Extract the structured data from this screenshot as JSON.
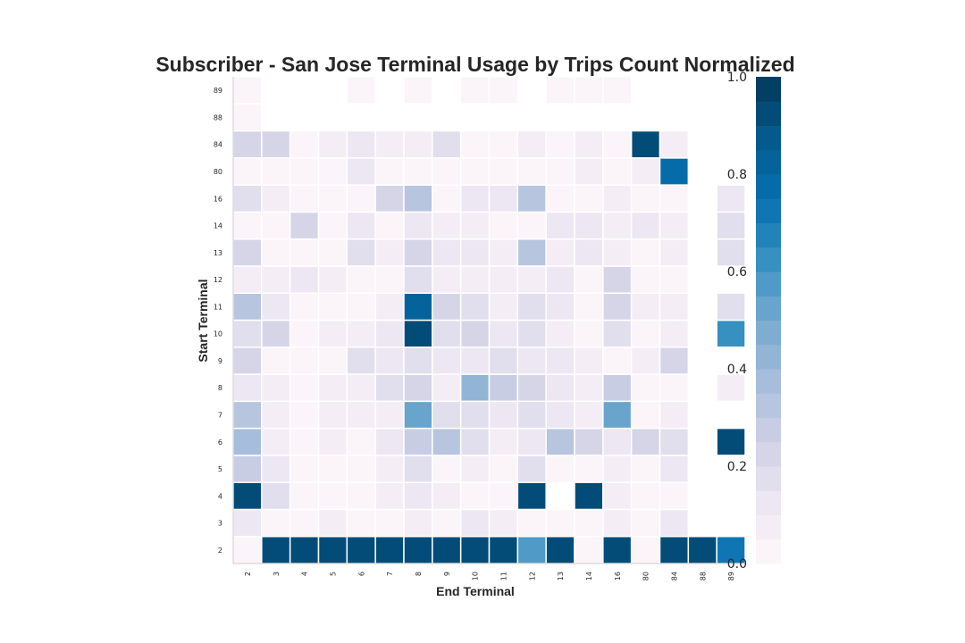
{
  "chart_data": {
    "type": "heatmap",
    "title": "Subscriber - San Jose Terminal Usage by Trips Count Normalized",
    "xlabel": "End Terminal",
    "ylabel": "Start Terminal",
    "x_categories": [
      "2",
      "3",
      "4",
      "5",
      "6",
      "7",
      "8",
      "9",
      "10",
      "11",
      "12",
      "13",
      "14",
      "16",
      "80",
      "84",
      "88",
      "89"
    ],
    "y_categories": [
      "2",
      "3",
      "4",
      "5",
      "6",
      "7",
      "8",
      "9",
      "10",
      "11",
      "12",
      "13",
      "14",
      "16",
      "80",
      "84",
      "88",
      "89"
    ],
    "values": [
      [
        0.02,
        0.93,
        0.93,
        0.93,
        0.93,
        0.93,
        0.93,
        0.93,
        0.93,
        0.93,
        0.55,
        0.93,
        0.02,
        0.93,
        0.0,
        0.93,
        0.93,
        0.7
      ],
      [
        0.1,
        0.03,
        0.03,
        0.06,
        0.03,
        0.03,
        0.06,
        0.03,
        0.1,
        0.06,
        0.03,
        0.02,
        0.02,
        0.06,
        0.03,
        0.1,
        null,
        null
      ],
      [
        0.93,
        0.15,
        0.04,
        0.04,
        0.04,
        0.06,
        0.1,
        0.06,
        0.03,
        0.03,
        0.93,
        null,
        0.93,
        0.06,
        0.03,
        0.03,
        null,
        null
      ],
      [
        0.25,
        0.1,
        0.04,
        0.04,
        0.03,
        0.06,
        0.15,
        0.03,
        0.06,
        0.03,
        0.15,
        0.03,
        0.03,
        0.06,
        0.03,
        0.1,
        null,
        null
      ],
      [
        0.35,
        0.06,
        0.04,
        0.06,
        0.03,
        0.1,
        0.25,
        0.3,
        0.15,
        0.06,
        0.1,
        0.3,
        0.2,
        0.1,
        0.2,
        0.15,
        null,
        0.93
      ],
      [
        0.3,
        0.06,
        0.04,
        0.06,
        0.06,
        0.06,
        0.5,
        0.15,
        0.15,
        0.1,
        0.15,
        0.1,
        0.06,
        0.5,
        0.03,
        0.06,
        null,
        null
      ],
      [
        0.1,
        0.06,
        0.04,
        0.06,
        0.06,
        0.15,
        0.2,
        0.06,
        0.4,
        0.25,
        0.2,
        0.1,
        0.06,
        0.25,
        0.03,
        0.03,
        null,
        0.06
      ],
      [
        0.2,
        0.03,
        0.04,
        0.03,
        0.15,
        0.1,
        0.15,
        0.1,
        0.1,
        0.15,
        0.1,
        0.1,
        0.06,
        0.04,
        0.06,
        0.2,
        null,
        null
      ],
      [
        0.15,
        0.2,
        0.04,
        0.06,
        0.06,
        0.1,
        0.93,
        0.15,
        0.2,
        0.1,
        0.15,
        0.06,
        0.03,
        0.15,
        0.03,
        0.06,
        null,
        0.6
      ],
      [
        0.3,
        0.1,
        0.04,
        0.04,
        0.04,
        0.06,
        0.8,
        0.2,
        0.15,
        0.06,
        0.15,
        0.1,
        0.04,
        0.2,
        0.06,
        0.06,
        null,
        0.15
      ],
      [
        0.06,
        0.06,
        0.1,
        0.06,
        0.04,
        0.04,
        0.15,
        0.06,
        0.06,
        0.06,
        0.06,
        0.1,
        0.04,
        0.2,
        0.04,
        0.04,
        null,
        null
      ],
      [
        0.2,
        0.03,
        0.03,
        0.04,
        0.15,
        0.06,
        0.2,
        0.1,
        0.1,
        0.06,
        0.3,
        0.06,
        0.1,
        0.06,
        0.04,
        0.06,
        null,
        0.15
      ],
      [
        0.04,
        0.03,
        0.2,
        0.03,
        0.1,
        0.04,
        0.1,
        0.06,
        0.06,
        0.04,
        0.04,
        0.1,
        0.1,
        0.06,
        0.1,
        0.06,
        null,
        0.15
      ],
      [
        0.15,
        0.06,
        0.03,
        0.04,
        0.04,
        0.2,
        0.3,
        0.04,
        0.1,
        0.1,
        0.3,
        0.04,
        0.04,
        0.06,
        0.04,
        0.04,
        null,
        0.1
      ],
      [
        0.04,
        0.04,
        0.03,
        0.03,
        0.1,
        0.04,
        0.04,
        0.04,
        0.04,
        0.04,
        0.04,
        0.04,
        0.06,
        0.04,
        0.06,
        0.75,
        null,
        null
      ],
      [
        0.2,
        0.2,
        0.04,
        0.06,
        0.1,
        0.06,
        0.06,
        0.15,
        0.03,
        0.03,
        0.06,
        0.03,
        0.06,
        0.03,
        0.93,
        0.06,
        null,
        null
      ],
      [
        0.03,
        null,
        null,
        null,
        null,
        null,
        null,
        null,
        null,
        null,
        null,
        null,
        null,
        null,
        null,
        null,
        null,
        null
      ],
      [
        0.03,
        null,
        null,
        null,
        0.03,
        null,
        0.03,
        null,
        0.03,
        0.03,
        null,
        0.03,
        0.03,
        0.03,
        null,
        null,
        null,
        null
      ]
    ],
    "vmin": 0.0,
    "vmax": 1.0,
    "colormap": "PuBu",
    "colorbar_ticks": [
      "0.0",
      "0.2",
      "0.4",
      "0.6",
      "0.8",
      "1.0"
    ],
    "colorbar_levels": 20,
    "grid_line_color": "#ffffff",
    "background_color": "#ffffff"
  }
}
